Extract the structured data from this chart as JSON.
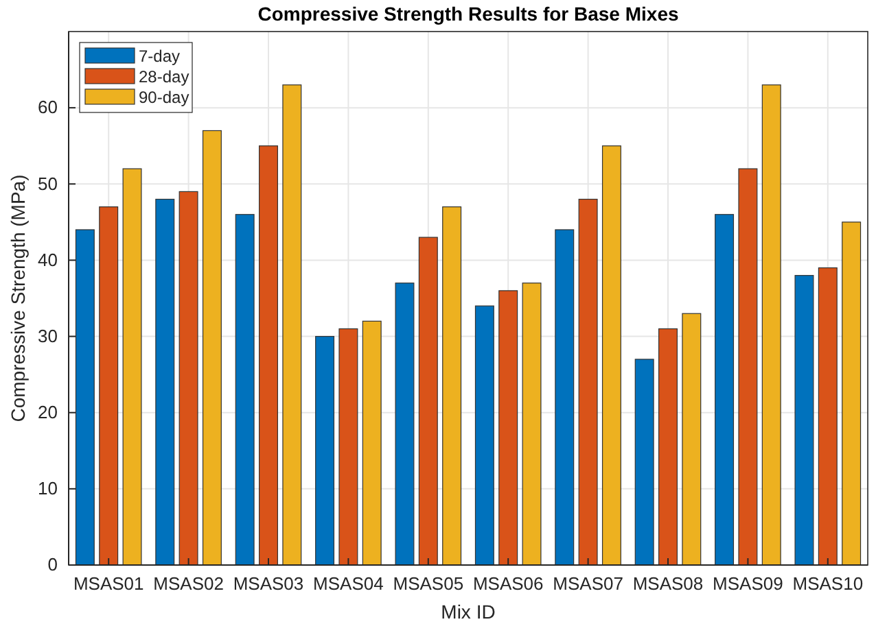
{
  "chart_data": {
    "type": "bar",
    "title": "Compressive Strength Results for Base Mixes",
    "xlabel": "Mix ID",
    "ylabel": "Compressive Strength (MPa)",
    "categories": [
      "MSAS01",
      "MSAS02",
      "MSAS03",
      "MSAS04",
      "MSAS05",
      "MSAS06",
      "MSAS07",
      "MSAS08",
      "MSAS09",
      "MSAS10"
    ],
    "series": [
      {
        "name": "7-day",
        "color": "#0072bd",
        "values": [
          44,
          48,
          46,
          30,
          37,
          34,
          44,
          27,
          46,
          38
        ]
      },
      {
        "name": "28-day",
        "color": "#d95319",
        "values": [
          47,
          49,
          55,
          31,
          43,
          36,
          48,
          31,
          52,
          39
        ]
      },
      {
        "name": "90-day",
        "color": "#edb120",
        "values": [
          52,
          57,
          63,
          32,
          47,
          37,
          55,
          33,
          63,
          45
        ]
      }
    ],
    "ylim": [
      0,
      70
    ],
    "yticks": [
      0,
      10,
      20,
      30,
      40,
      50,
      60
    ],
    "grid": true,
    "legend": "top left"
  }
}
